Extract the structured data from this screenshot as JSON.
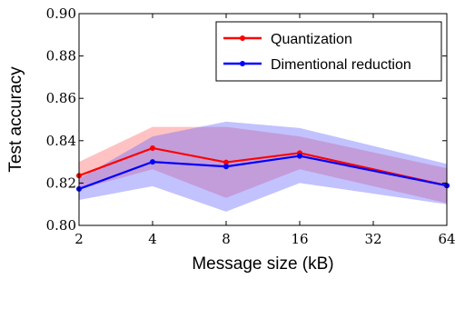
{
  "chart_data": {
    "type": "line",
    "xlabel": "Message size (kB)",
    "ylabel": "Test accuracy",
    "x_scale": "log2",
    "x": [
      2,
      4,
      8,
      16,
      32,
      64
    ],
    "x_ticks": [
      "2",
      "4",
      "8",
      "16",
      "32",
      "64"
    ],
    "xlim": [
      2,
      64
    ],
    "ylim": [
      0.8,
      0.9
    ],
    "y_ticks": [
      "0.80",
      "0.82",
      "0.84",
      "0.86",
      "0.88",
      "0.90"
    ],
    "grid": false,
    "legend_position": "top-right",
    "series": [
      {
        "name": "Quantization",
        "color": "#ff0000",
        "x": [
          2,
          4,
          8,
          16,
          64
        ],
        "values": [
          0.8235,
          0.8365,
          0.8298,
          0.8342,
          0.8188
        ],
        "upper": [
          0.83,
          0.8465,
          0.8465,
          0.842,
          0.827
        ],
        "lower": [
          0.817,
          0.8265,
          0.813,
          0.8265,
          0.8105
        ],
        "band_color": "#ff6666"
      },
      {
        "name": "Dimentional reduction",
        "color": "#0000ff",
        "x": [
          2,
          4,
          8,
          16,
          64
        ],
        "values": [
          0.8172,
          0.83,
          0.8278,
          0.8328,
          0.8188
        ],
        "upper": [
          0.822,
          0.842,
          0.849,
          0.846,
          0.829
        ],
        "lower": [
          0.812,
          0.8185,
          0.8065,
          0.82,
          0.81
        ],
        "band_color": "#6666ff"
      }
    ]
  }
}
